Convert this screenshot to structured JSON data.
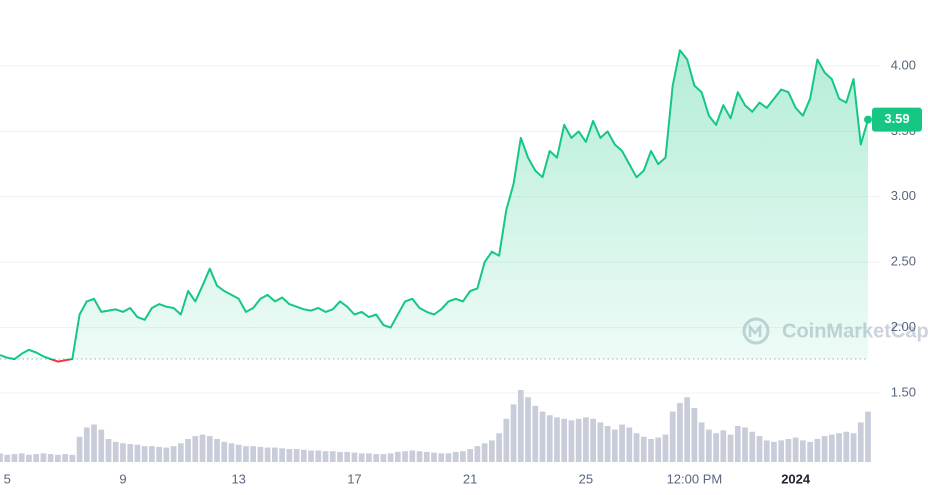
{
  "chart_data": {
    "type": "line",
    "series": [
      {
        "name": null,
        "color": "#16c784",
        "down_color": "#ea3943",
        "values": [
          1.79,
          1.77,
          1.76,
          1.8,
          1.83,
          1.81,
          1.78,
          1.76,
          1.74,
          1.75,
          1.76,
          2.1,
          2.2,
          2.22,
          2.12,
          2.13,
          2.14,
          2.12,
          2.15,
          2.08,
          2.06,
          2.15,
          2.18,
          2.16,
          2.15,
          2.1,
          2.28,
          2.2,
          2.32,
          2.45,
          2.32,
          2.28,
          2.25,
          2.22,
          2.12,
          2.15,
          2.22,
          2.25,
          2.2,
          2.23,
          2.18,
          2.16,
          2.14,
          2.13,
          2.15,
          2.12,
          2.14,
          2.2,
          2.16,
          2.1,
          2.12,
          2.08,
          2.1,
          2.02,
          2.0,
          2.1,
          2.2,
          2.22,
          2.15,
          2.12,
          2.1,
          2.14,
          2.2,
          2.22,
          2.2,
          2.28,
          2.3,
          2.5,
          2.58,
          2.55,
          2.9,
          3.1,
          3.45,
          3.3,
          3.2,
          3.15,
          3.35,
          3.3,
          3.55,
          3.45,
          3.5,
          3.42,
          3.58,
          3.45,
          3.5,
          3.4,
          3.35,
          3.25,
          3.15,
          3.2,
          3.35,
          3.25,
          3.3,
          3.85,
          4.12,
          4.05,
          3.85,
          3.8,
          3.62,
          3.55,
          3.7,
          3.6,
          3.8,
          3.7,
          3.65,
          3.72,
          3.68,
          3.75,
          3.82,
          3.8,
          3.68,
          3.62,
          3.75,
          4.05,
          3.95,
          3.9,
          3.75,
          3.72,
          3.9,
          3.4,
          3.59
        ]
      }
    ],
    "volume": {
      "color": "#c9cdd9",
      "values": [
        12,
        10,
        11,
        12,
        10,
        11,
        12,
        11,
        10,
        11,
        10,
        35,
        48,
        52,
        45,
        32,
        28,
        26,
        25,
        24,
        22,
        22,
        21,
        20,
        22,
        26,
        32,
        36,
        38,
        36,
        32,
        28,
        26,
        24,
        22,
        22,
        21,
        20,
        20,
        19,
        18,
        18,
        17,
        16,
        16,
        15,
        15,
        14,
        14,
        13,
        12,
        12,
        11,
        11,
        12,
        14,
        15,
        16,
        15,
        14,
        13,
        12,
        12,
        14,
        15,
        18,
        22,
        26,
        30,
        40,
        60,
        80,
        100,
        90,
        78,
        70,
        65,
        62,
        60,
        58,
        60,
        62,
        60,
        55,
        50,
        45,
        52,
        48,
        40,
        35,
        32,
        34,
        38,
        70,
        82,
        90,
        75,
        55,
        45,
        40,
        44,
        38,
        50,
        48,
        42,
        36,
        30,
        28,
        30,
        32,
        34,
        30,
        28,
        32,
        36,
        38,
        40,
        42,
        40,
        55,
        70
      ]
    },
    "baseline": 1.76,
    "current_price": 3.59,
    "xlim": [
      0,
      120
    ],
    "xticks": [
      {
        "value": 1,
        "label": "5"
      },
      {
        "value": 17,
        "label": "9"
      },
      {
        "value": 33,
        "label": "13"
      },
      {
        "value": 49,
        "label": "17"
      },
      {
        "value": 65,
        "label": "21"
      },
      {
        "value": 81,
        "label": "25"
      },
      {
        "value": 96,
        "label": "12:00 PM"
      },
      {
        "value": 110,
        "label": "2024",
        "bold": true
      }
    ],
    "ylim": [
      1.25,
      4.5
    ],
    "yticks": [
      {
        "value": 1.5,
        "label": "1.50"
      },
      {
        "value": 2,
        "label": "2.00"
      },
      {
        "value": 2.5,
        "label": "2.50"
      },
      {
        "value": 3,
        "label": "3.00"
      },
      {
        "value": 3.5,
        "label": "3.50"
      },
      {
        "value": 4,
        "label": "4.00"
      }
    ],
    "grid": true,
    "watermark": "CoinMarketCap"
  }
}
